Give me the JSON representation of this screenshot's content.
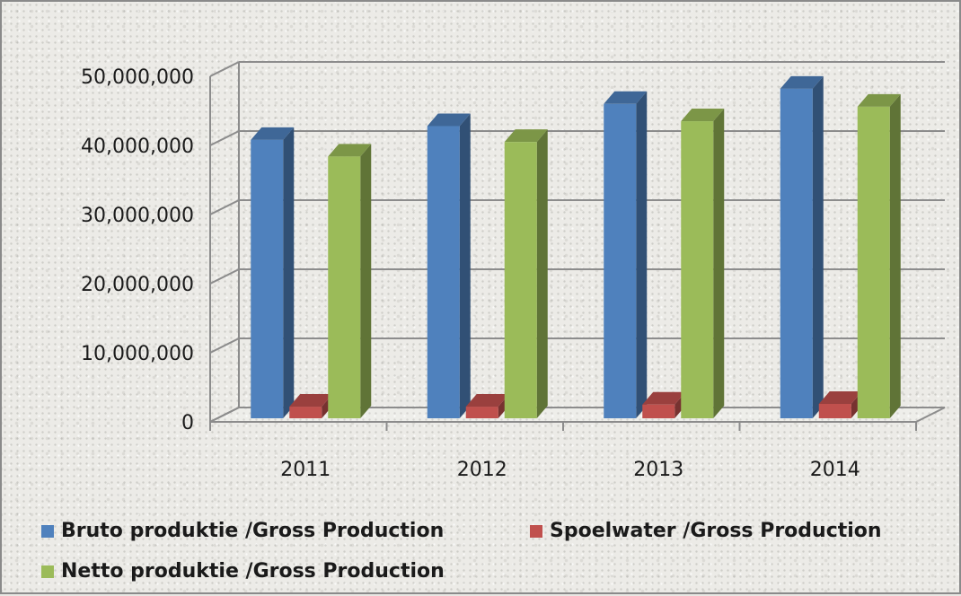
{
  "chart_data": {
    "type": "bar",
    "categories": [
      "2011",
      "2012",
      "2013",
      "2014"
    ],
    "series": [
      {
        "name": "Bruto produktie /Gross Production",
        "color": "#4f81bd",
        "values": [
          40800000,
          42800000,
          46000000,
          48200000
        ]
      },
      {
        "name": "Spoelwater /Gross Production",
        "color": "#c0504d",
        "values": [
          2200000,
          2200000,
          2500000,
          2600000
        ]
      },
      {
        "name": "Netto produktie /Gross Production",
        "color": "#9bbb59",
        "values": [
          38400000,
          40500000,
          43500000,
          45600000
        ]
      }
    ],
    "y_ticks": [
      "0",
      "10,000,000",
      "20,000,000",
      "30,000,000",
      "40,000,000",
      "50,000,000"
    ],
    "ylim": [
      0,
      50000000
    ],
    "grid": true,
    "legend_position": "bottom",
    "style": "3d-clustered-column"
  }
}
